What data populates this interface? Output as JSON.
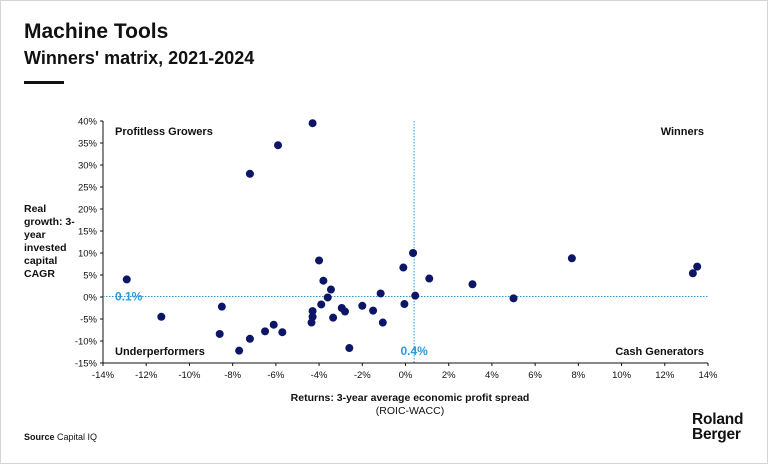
{
  "header": {
    "title": "Machine Tools",
    "subtitle": "Winners' matrix, 2021-2024"
  },
  "footer": {
    "source_label": "Source",
    "source_text": "Capital IQ",
    "logo_line1": "Roland",
    "logo_line2": "Berger"
  },
  "colors": {
    "point": "#0c1566",
    "reference": "#2b9bd8",
    "axis": "#111111"
  },
  "chart_data": {
    "type": "scatter",
    "ylabel": "Real growth: 3-year invested capital CAGR",
    "xlabel": "Returns: 3-year average economic profit spread",
    "xlabel_sub": "(ROIC-WACC)",
    "xlim": [
      -14,
      14
    ],
    "ylim": [
      -15,
      40
    ],
    "x_ticks": [
      -14,
      -12,
      -10,
      -8,
      -6,
      -4,
      -2,
      0,
      2,
      4,
      6,
      8,
      10,
      12,
      14
    ],
    "y_ticks": [
      40,
      35,
      30,
      25,
      20,
      15,
      10,
      5,
      0,
      -5,
      -10,
      -15
    ],
    "x_tick_labels": [
      "-14%",
      "-12%",
      "-10%",
      "-8%",
      "-6%",
      "-4%",
      "-2%",
      "0%",
      "2%",
      "4%",
      "6%",
      "8%",
      "10%",
      "12%",
      "14%"
    ],
    "y_tick_labels": [
      "40%",
      "35%",
      "30%",
      "25%",
      "20%",
      "15%",
      "10%",
      "5%",
      "0%",
      "-5%",
      "-10%",
      "-15%"
    ],
    "reference_lines": {
      "x": 0.4,
      "x_label": "0.4%",
      "y": 0.1,
      "y_label": "0.1%"
    },
    "quadrant_labels": {
      "top_left": "Profitless Growers",
      "top_right": "Winners",
      "bottom_left": "Underperformers",
      "bottom_right": "Cash Generators"
    },
    "grid": false,
    "points": [
      {
        "x": -4.3,
        "y": 39.5
      },
      {
        "x": -5.9,
        "y": 34.5
      },
      {
        "x": -7.2,
        "y": 28.0
      },
      {
        "x": -12.9,
        "y": 4.0
      },
      {
        "x": -11.3,
        "y": -4.5
      },
      {
        "x": -8.5,
        "y": -2.2
      },
      {
        "x": -8.6,
        "y": -8.4
      },
      {
        "x": -7.2,
        "y": -9.5
      },
      {
        "x": -7.7,
        "y": -12.2
      },
      {
        "x": -6.5,
        "y": -7.8
      },
      {
        "x": -6.1,
        "y": -6.3
      },
      {
        "x": -5.7,
        "y": -8.0
      },
      {
        "x": -4.0,
        "y": 8.3
      },
      {
        "x": -4.3,
        "y": -3.2
      },
      {
        "x": -4.3,
        "y": -4.5
      },
      {
        "x": -4.35,
        "y": -5.8
      },
      {
        "x": -3.8,
        "y": 3.7
      },
      {
        "x": -3.9,
        "y": -1.7
      },
      {
        "x": -3.6,
        "y": -0.1
      },
      {
        "x": -3.45,
        "y": 1.7
      },
      {
        "x": -3.35,
        "y": -4.7
      },
      {
        "x": -2.95,
        "y": -2.5
      },
      {
        "x": -2.8,
        "y": -3.3
      },
      {
        "x": -2.6,
        "y": -11.6
      },
      {
        "x": -2.0,
        "y": -2.0
      },
      {
        "x": -1.5,
        "y": -3.1
      },
      {
        "x": -1.15,
        "y": 0.8
      },
      {
        "x": -1.05,
        "y": -5.8
      },
      {
        "x": -0.1,
        "y": 6.7
      },
      {
        "x": -0.05,
        "y": -1.6
      },
      {
        "x": 0.35,
        "y": 10.0
      },
      {
        "x": 0.45,
        "y": 0.3
      },
      {
        "x": 1.1,
        "y": 4.2
      },
      {
        "x": 3.1,
        "y": 2.9
      },
      {
        "x": 5.0,
        "y": -0.3
      },
      {
        "x": 7.7,
        "y": 8.8
      },
      {
        "x": 13.3,
        "y": 5.4
      },
      {
        "x": 13.5,
        "y": 6.9
      }
    ]
  }
}
